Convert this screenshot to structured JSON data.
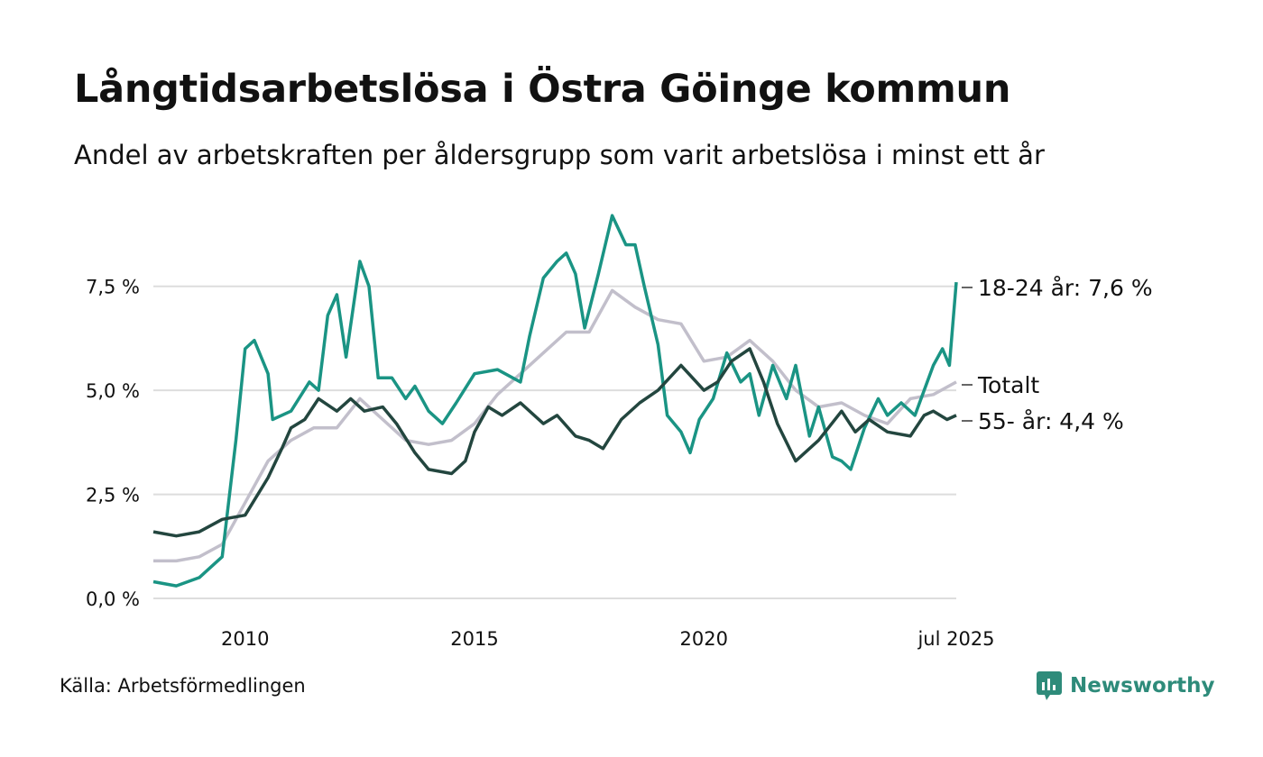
{
  "title": "Långtidsarbetslösa i Östra Göinge kommun",
  "subtitle": "Andel av arbetskraften per åldersgrupp som varit arbetslösa i minst ett år",
  "source": "Källa: Arbetsförmedlingen",
  "brand": "Newsworthy",
  "colors": {
    "youth": "#1a9484",
    "total": "#c2bfcb",
    "senior": "#23463f",
    "brand": "#2e8b7a",
    "grid": "#dddddd"
  },
  "chart_data": {
    "type": "line",
    "x_unit": "year",
    "xlim": [
      2008.0,
      2025.5
    ],
    "ylim": [
      0,
      9.4
    ],
    "y_ticks": [
      {
        "value": 0,
        "label": "0,0 %"
      },
      {
        "value": 2.5,
        "label": "2,5 %"
      },
      {
        "value": 5,
        "label": "5,0 %"
      },
      {
        "value": 7.5,
        "label": "7,5 %"
      }
    ],
    "x_ticks": [
      {
        "value": 2010,
        "label": "2010"
      },
      {
        "value": 2015,
        "label": "2015"
      },
      {
        "value": 2020,
        "label": "2020"
      },
      {
        "value": 2025.5,
        "label": "jul 2025"
      }
    ],
    "series": [
      {
        "name": "Totalt",
        "label": "Totalt",
        "color_key": "total",
        "points": [
          [
            2008.0,
            0.9
          ],
          [
            2008.5,
            0.9
          ],
          [
            2009.0,
            1.0
          ],
          [
            2009.5,
            1.3
          ],
          [
            2010.0,
            2.3
          ],
          [
            2010.5,
            3.3
          ],
          [
            2011.0,
            3.8
          ],
          [
            2011.5,
            4.1
          ],
          [
            2012.0,
            4.1
          ],
          [
            2012.5,
            4.8
          ],
          [
            2013.0,
            4.3
          ],
          [
            2013.5,
            3.8
          ],
          [
            2014.0,
            3.7
          ],
          [
            2014.5,
            3.8
          ],
          [
            2015.0,
            4.2
          ],
          [
            2015.5,
            4.9
          ],
          [
            2016.0,
            5.4
          ],
          [
            2016.5,
            5.9
          ],
          [
            2017.0,
            6.4
          ],
          [
            2017.5,
            6.4
          ],
          [
            2018.0,
            7.4
          ],
          [
            2018.5,
            7.0
          ],
          [
            2019.0,
            6.7
          ],
          [
            2019.5,
            6.6
          ],
          [
            2020.0,
            5.7
          ],
          [
            2020.5,
            5.8
          ],
          [
            2021.0,
            6.2
          ],
          [
            2021.5,
            5.7
          ],
          [
            2022.0,
            5.0
          ],
          [
            2022.5,
            4.6
          ],
          [
            2023.0,
            4.7
          ],
          [
            2023.5,
            4.4
          ],
          [
            2024.0,
            4.2
          ],
          [
            2024.5,
            4.8
          ],
          [
            2025.0,
            4.9
          ],
          [
            2025.5,
            5.2
          ]
        ]
      },
      {
        "name": "18-24 år",
        "label": "18-24 år: 7,6 %",
        "color_key": "youth",
        "points": [
          [
            2008.0,
            0.4
          ],
          [
            2008.5,
            0.3
          ],
          [
            2009.0,
            0.5
          ],
          [
            2009.5,
            1.0
          ],
          [
            2009.8,
            3.8
          ],
          [
            2010.0,
            6.0
          ],
          [
            2010.2,
            6.2
          ],
          [
            2010.5,
            5.4
          ],
          [
            2010.6,
            4.3
          ],
          [
            2011.0,
            4.5
          ],
          [
            2011.4,
            5.2
          ],
          [
            2011.6,
            5.0
          ],
          [
            2011.8,
            6.8
          ],
          [
            2012.0,
            7.3
          ],
          [
            2012.2,
            5.8
          ],
          [
            2012.5,
            8.1
          ],
          [
            2012.7,
            7.5
          ],
          [
            2012.9,
            5.3
          ],
          [
            2013.2,
            5.3
          ],
          [
            2013.5,
            4.8
          ],
          [
            2013.7,
            5.1
          ],
          [
            2014.0,
            4.5
          ],
          [
            2014.3,
            4.2
          ],
          [
            2014.6,
            4.7
          ],
          [
            2015.0,
            5.4
          ],
          [
            2015.5,
            5.5
          ],
          [
            2016.0,
            5.2
          ],
          [
            2016.2,
            6.3
          ],
          [
            2016.5,
            7.7
          ],
          [
            2016.8,
            8.1
          ],
          [
            2017.0,
            8.3
          ],
          [
            2017.2,
            7.8
          ],
          [
            2017.4,
            6.5
          ],
          [
            2017.7,
            7.8
          ],
          [
            2018.0,
            9.2
          ],
          [
            2018.3,
            8.5
          ],
          [
            2018.5,
            8.5
          ],
          [
            2018.7,
            7.5
          ],
          [
            2019.0,
            6.1
          ],
          [
            2019.2,
            4.4
          ],
          [
            2019.5,
            4.0
          ],
          [
            2019.7,
            3.5
          ],
          [
            2019.9,
            4.3
          ],
          [
            2020.2,
            4.8
          ],
          [
            2020.5,
            5.9
          ],
          [
            2020.8,
            5.2
          ],
          [
            2021.0,
            5.4
          ],
          [
            2021.2,
            4.4
          ],
          [
            2021.5,
            5.6
          ],
          [
            2021.8,
            4.8
          ],
          [
            2022.0,
            5.6
          ],
          [
            2022.3,
            3.9
          ],
          [
            2022.5,
            4.6
          ],
          [
            2022.8,
            3.4
          ],
          [
            2023.0,
            3.3
          ],
          [
            2023.2,
            3.1
          ],
          [
            2023.5,
            4.1
          ],
          [
            2023.8,
            4.8
          ],
          [
            2024.0,
            4.4
          ],
          [
            2024.3,
            4.7
          ],
          [
            2024.6,
            4.4
          ],
          [
            2024.8,
            5.0
          ],
          [
            2025.0,
            5.6
          ],
          [
            2025.2,
            6.0
          ],
          [
            2025.35,
            5.6
          ],
          [
            2025.5,
            7.6
          ]
        ]
      },
      {
        "name": "55- år",
        "label": "55- år: 4,4 %",
        "color_key": "senior",
        "points": [
          [
            2008.0,
            1.6
          ],
          [
            2008.5,
            1.5
          ],
          [
            2009.0,
            1.6
          ],
          [
            2009.5,
            1.9
          ],
          [
            2010.0,
            2.0
          ],
          [
            2010.5,
            2.9
          ],
          [
            2010.8,
            3.6
          ],
          [
            2011.0,
            4.1
          ],
          [
            2011.3,
            4.3
          ],
          [
            2011.6,
            4.8
          ],
          [
            2012.0,
            4.5
          ],
          [
            2012.3,
            4.8
          ],
          [
            2012.6,
            4.5
          ],
          [
            2013.0,
            4.6
          ],
          [
            2013.3,
            4.2
          ],
          [
            2013.7,
            3.5
          ],
          [
            2014.0,
            3.1
          ],
          [
            2014.5,
            3.0
          ],
          [
            2014.8,
            3.3
          ],
          [
            2015.0,
            4.0
          ],
          [
            2015.3,
            4.6
          ],
          [
            2015.6,
            4.4
          ],
          [
            2016.0,
            4.7
          ],
          [
            2016.5,
            4.2
          ],
          [
            2016.8,
            4.4
          ],
          [
            2017.2,
            3.9
          ],
          [
            2017.5,
            3.8
          ],
          [
            2017.8,
            3.6
          ],
          [
            2018.2,
            4.3
          ],
          [
            2018.6,
            4.7
          ],
          [
            2019.0,
            5.0
          ],
          [
            2019.5,
            5.6
          ],
          [
            2020.0,
            5.0
          ],
          [
            2020.3,
            5.2
          ],
          [
            2020.6,
            5.7
          ],
          [
            2021.0,
            6.0
          ],
          [
            2021.3,
            5.2
          ],
          [
            2021.6,
            4.2
          ],
          [
            2022.0,
            3.3
          ],
          [
            2022.5,
            3.8
          ],
          [
            2023.0,
            4.5
          ],
          [
            2023.3,
            4.0
          ],
          [
            2023.6,
            4.3
          ],
          [
            2024.0,
            4.0
          ],
          [
            2024.5,
            3.9
          ],
          [
            2024.8,
            4.4
          ],
          [
            2025.0,
            4.5
          ],
          [
            2025.3,
            4.3
          ],
          [
            2025.5,
            4.4
          ]
        ]
      }
    ]
  }
}
